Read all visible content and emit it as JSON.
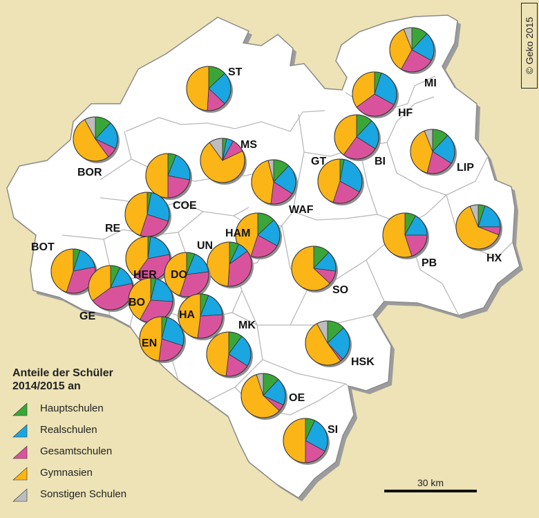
{
  "copyright": "© Geko 2015",
  "legend": {
    "title_line1": "Anteile der Schüler",
    "title_line2": "2014/2015 an",
    "items": [
      {
        "label": "Hauptschulen",
        "color": "#3aa63a"
      },
      {
        "label": "Realschulen",
        "color": "#1aa6e0"
      },
      {
        "label": "Gesamtschulen",
        "color": "#d9539c"
      },
      {
        "label": "Gymnasien",
        "color": "#fbb516"
      },
      {
        "label": "Sonstigen Schulen",
        "color": "#bdbdbd"
      }
    ]
  },
  "scale": {
    "label": "30 km"
  },
  "districts": [
    {
      "code": "ST",
      "shares": [
        0.13,
        0.24,
        0.14,
        0.49
      ]
    },
    {
      "code": "MI",
      "shares": [
        0.12,
        0.21,
        0.25,
        0.36,
        0.06
      ]
    },
    {
      "code": "HF",
      "shares": [
        0.05,
        0.28,
        0.32,
        0.35
      ]
    },
    {
      "code": "BOR",
      "shares": [
        0.12,
        0.2,
        0.08,
        0.52,
        0.08
      ]
    },
    {
      "code": "MS",
      "shares": [
        0.03,
        0.05,
        0.1,
        0.72,
        0.1
      ]
    },
    {
      "code": "GT",
      "shares": [
        0.03,
        0.3,
        0.22,
        0.45
      ]
    },
    {
      "code": "BI",
      "shares": [
        0.12,
        0.22,
        0.26,
        0.4
      ]
    },
    {
      "code": "LIP",
      "shares": [
        0.12,
        0.22,
        0.2,
        0.4,
        0.06
      ]
    },
    {
      "code": "COE",
      "shares": [
        0.06,
        0.22,
        0.22,
        0.5
      ]
    },
    {
      "code": "WAF",
      "shares": [
        0.12,
        0.22,
        0.18,
        0.44,
        0.04
      ]
    },
    {
      "code": "RE",
      "shares": [
        0.03,
        0.27,
        0.25,
        0.45
      ]
    },
    {
      "code": "HAM",
      "shares": [
        0.13,
        0.2,
        0.22,
        0.45
      ]
    },
    {
      "code": "UN",
      "shares": [
        0.07,
        0.08,
        0.36,
        0.49
      ]
    },
    {
      "code": "BOT",
      "shares": [
        0.05,
        0.17,
        0.33,
        0.45
      ]
    },
    {
      "code": "HER",
      "shares": [
        0.02,
        0.2,
        0.38,
        0.4
      ]
    },
    {
      "code": "DO",
      "shares": [
        0.06,
        0.17,
        0.32,
        0.45
      ]
    },
    {
      "code": "SO",
      "shares": [
        0.12,
        0.15,
        0.1,
        0.63
      ]
    },
    {
      "code": "PB",
      "shares": [
        0.08,
        0.17,
        0.2,
        0.55
      ]
    },
    {
      "code": "HX",
      "shares": [
        0.05,
        0.2,
        0.06,
        0.63,
        0.06
      ]
    },
    {
      "code": "GE",
      "shares": [
        0.07,
        0.15,
        0.43,
        0.35
      ]
    },
    {
      "code": "BO",
      "shares": [
        0.04,
        0.22,
        0.32,
        0.42
      ]
    },
    {
      "code": "HA",
      "shares": [
        0.06,
        0.18,
        0.28,
        0.48
      ]
    },
    {
      "code": "MK",
      "shares": [
        0.1,
        0.24,
        0.18,
        0.48
      ]
    },
    {
      "code": "HSK",
      "shares": [
        0.13,
        0.25,
        0.02,
        0.52,
        0.08
      ]
    },
    {
      "code": "EN",
      "shares": [
        0.04,
        0.26,
        0.22,
        0.48
      ]
    },
    {
      "code": "OE",
      "shares": [
        0.12,
        0.2,
        0.05,
        0.58,
        0.05
      ]
    },
    {
      "code": "SI",
      "shares": [
        0.07,
        0.26,
        0.17,
        0.5
      ]
    }
  ]
}
